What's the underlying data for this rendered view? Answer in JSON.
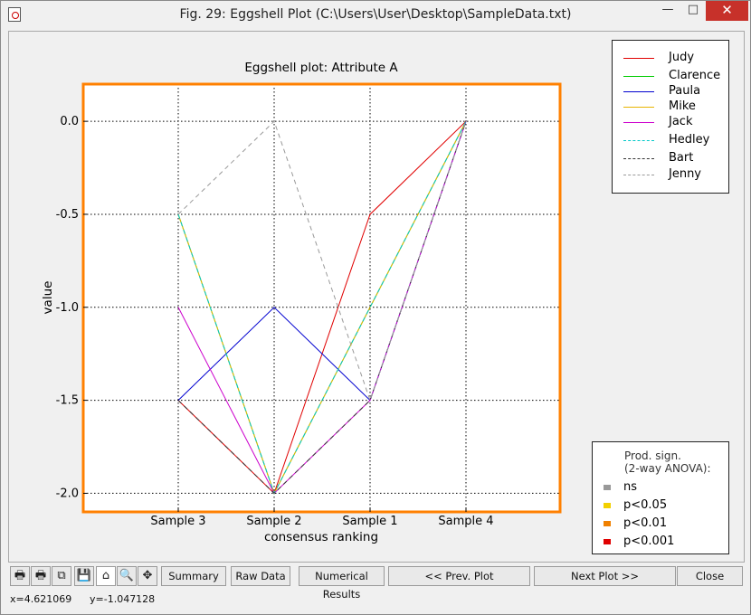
{
  "window": {
    "title": "Fig. 29: Eggshell Plot (C:\\Users\\User\\Desktop\\SampleData.txt)",
    "minimize_glyph": "—",
    "maximize_glyph": "□",
    "close_glyph": "✕"
  },
  "legend_series": [
    {
      "name": "Judy",
      "color": "#e00000",
      "dash": "solid"
    },
    {
      "name": "Clarence",
      "color": "#00cc00",
      "dash": "solid"
    },
    {
      "name": "Paula",
      "color": "#0000d0",
      "dash": "solid"
    },
    {
      "name": "Mike",
      "color": "#e8b400",
      "dash": "solid"
    },
    {
      "name": "Jack",
      "color": "#cc00cc",
      "dash": "solid"
    },
    {
      "name": "Hedley",
      "color": "#00c8c8",
      "dash": "dashed"
    },
    {
      "name": "Bart",
      "color": "#333333",
      "dash": "dashed"
    },
    {
      "name": "Jenny",
      "color": "#999999",
      "dash": "dashed"
    }
  ],
  "legend_significance": {
    "title_line1": "Prod. sign.",
    "title_line2": "(2-way ANOVA):",
    "items": [
      {
        "label": "ns",
        "color": "#999999"
      },
      {
        "label": "p<0.05",
        "color": "#f2d000"
      },
      {
        "label": "p<0.01",
        "color": "#f08000"
      },
      {
        "label": "p<0.001",
        "color": "#e00000"
      }
    ]
  },
  "chart_data": {
    "type": "line",
    "title": "Eggshell plot: Attribute A",
    "xlabel": "consensus ranking",
    "ylabel": "value",
    "categories": [
      "Sample 3",
      "Sample 2",
      "Sample 1",
      "Sample 4"
    ],
    "ylim": [
      -2.1,
      0.2
    ],
    "yticks": [
      0.0,
      -0.5,
      -1.0,
      -1.5,
      -2.0
    ],
    "ytick_labels": [
      "0.0",
      "-0.5",
      "-1.0",
      "-1.5",
      "-2.0"
    ],
    "grid": true,
    "frame_color": "#ff8000",
    "series": [
      {
        "name": "Judy",
        "values": [
          -1.5,
          -2.0,
          -0.5,
          0.0
        ],
        "color": "#e00000",
        "dash": "solid"
      },
      {
        "name": "Clarence",
        "values": [
          -0.5,
          -2.0,
          -1.0,
          0.0
        ],
        "color": "#00cc00",
        "dash": "solid"
      },
      {
        "name": "Paula",
        "values": [
          -1.5,
          -1.0,
          -1.5,
          0.0
        ],
        "color": "#0000d0",
        "dash": "solid"
      },
      {
        "name": "Mike",
        "values": [
          -0.5,
          -2.0,
          -1.0,
          0.0
        ],
        "color": "#e8b400",
        "dash": "solid"
      },
      {
        "name": "Jack",
        "values": [
          -1.0,
          -2.0,
          -1.5,
          0.0
        ],
        "color": "#cc00cc",
        "dash": "solid"
      },
      {
        "name": "Hedley",
        "values": [
          -0.5,
          -2.0,
          -1.0,
          0.0
        ],
        "color": "#00c8c8",
        "dash": "dashed"
      },
      {
        "name": "Bart",
        "values": [
          -1.5,
          -2.0,
          -1.5,
          0.0
        ],
        "color": "#333333",
        "dash": "dashed"
      },
      {
        "name": "Jenny",
        "values": [
          -0.5,
          0.0,
          -1.5,
          0.0
        ],
        "color": "#999999",
        "dash": "dashed"
      }
    ]
  },
  "toolbar": {
    "icons": [
      {
        "name": "print-icon",
        "glyph": "🖶"
      },
      {
        "name": "print-preview-icon",
        "glyph": "🖶"
      },
      {
        "name": "copy-icon",
        "glyph": "⧉"
      },
      {
        "name": "save-icon",
        "glyph": "💾"
      },
      {
        "name": "home-icon",
        "glyph": "⌂"
      },
      {
        "name": "zoom-icon",
        "glyph": "🔍"
      },
      {
        "name": "pan-icon",
        "glyph": "✥"
      }
    ],
    "buttons": [
      {
        "name": "summary-button",
        "label": "Summary"
      },
      {
        "name": "raw-data-button",
        "label": "Raw Data"
      },
      {
        "name": "numerical-results-button",
        "label": "Numerical Results"
      },
      {
        "name": "prev-plot-button",
        "label": "<< Prev. Plot"
      },
      {
        "name": "next-plot-button",
        "label": "Next Plot >>"
      },
      {
        "name": "close-button",
        "label": "Close"
      }
    ]
  },
  "status": {
    "x": "x=4.621069",
    "y": "y=-1.047128"
  }
}
